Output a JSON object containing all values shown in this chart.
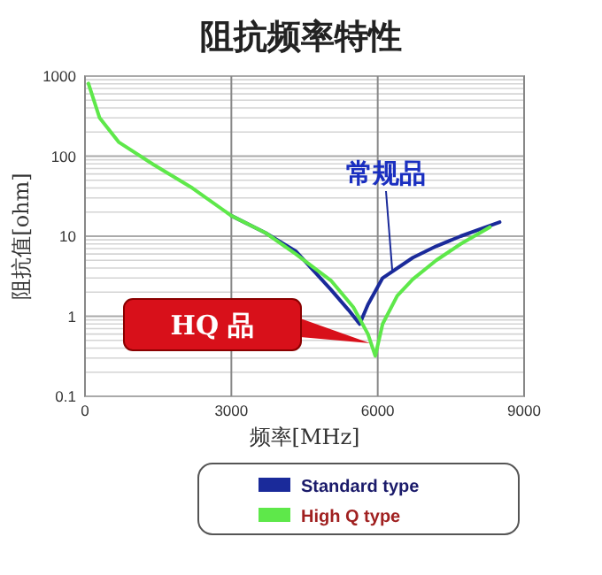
{
  "chart_data": {
    "type": "line",
    "title": "阻抗频率特性",
    "xlabel": "频率[MHz]",
    "ylabel": "阻抗值[ohm]",
    "xlim": [
      0,
      9000
    ],
    "xticks": [
      0,
      3000,
      6000,
      9000
    ],
    "ylim": [
      0.1,
      1000
    ],
    "yticks": [
      0.1,
      1,
      10,
      100,
      1000
    ],
    "log": "y",
    "grid": true,
    "legend": "bottom",
    "series": [
      {
        "name": "Standard type",
        "color": "#1a2a9a",
        "x": [
          3000,
          3700,
          4320,
          5040,
          5400,
          5630,
          5800,
          6100,
          6720,
          7200,
          7700,
          8500
        ],
        "values": [
          18,
          11,
          6.5,
          2.15,
          1.2,
          0.8,
          1.4,
          3,
          5.4,
          7.5,
          10,
          15
        ]
      },
      {
        "name": "High Q type",
        "color": "#5ee84a",
        "x": [
          70,
          300,
          690,
          1410,
          2200,
          3000,
          3700,
          4320,
          5040,
          5500,
          5800,
          5950,
          6100,
          6400,
          6720,
          7200,
          7700,
          8300
        ],
        "values": [
          810,
          300,
          150,
          78,
          40,
          18,
          11,
          6,
          2.8,
          1.3,
          0.6,
          0.32,
          0.8,
          1.8,
          2.9,
          5,
          8,
          13
        ]
      }
    ],
    "annotations": [
      {
        "text": "常规品",
        "x": 6300,
        "y": 3.6
      },
      "HQ 品"
    ]
  }
}
